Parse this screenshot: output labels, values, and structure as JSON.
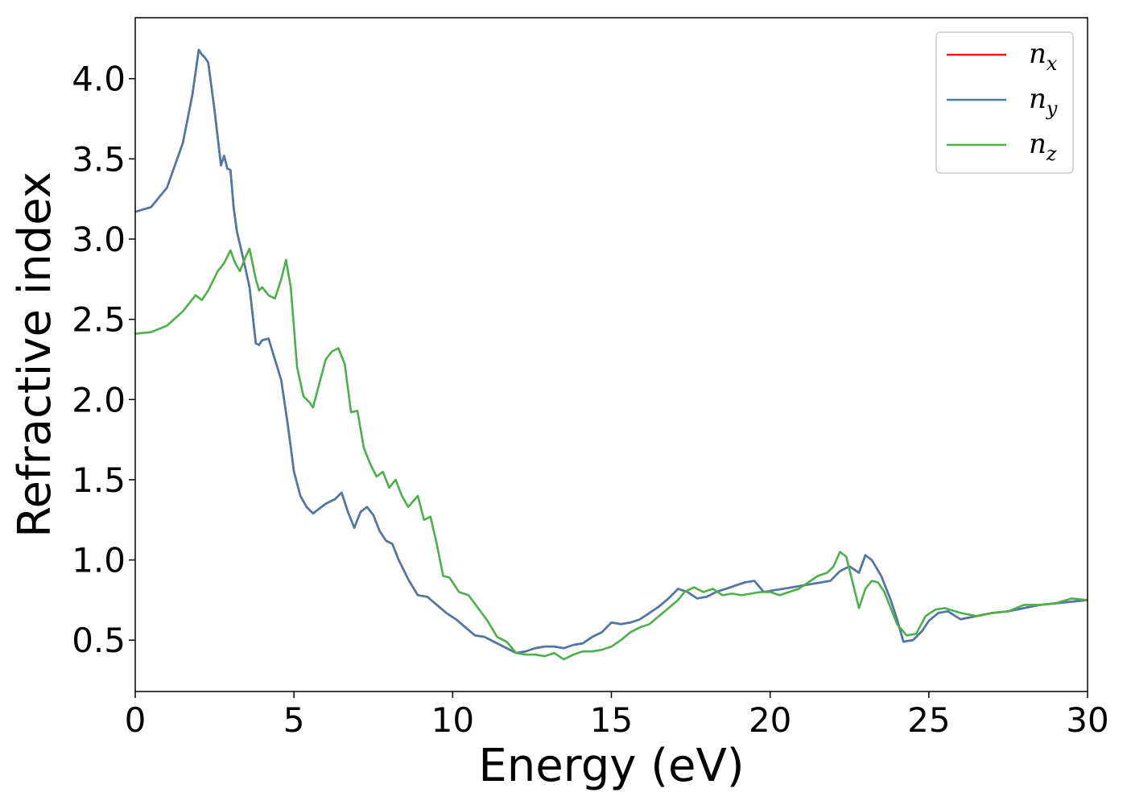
{
  "chart_data": {
    "type": "line",
    "xlabel": "Energy (eV)",
    "ylabel": "Refractive index",
    "xlim": [
      0,
      30
    ],
    "ylim": [
      0.18,
      4.38
    ],
    "xticks": [
      0,
      5,
      10,
      15,
      20,
      25,
      30
    ],
    "yticks": [
      0.5,
      1.0,
      1.5,
      2.0,
      2.5,
      3.0,
      3.5,
      4.0
    ],
    "xtick_labels": [
      "0",
      "5",
      "10",
      "15",
      "20",
      "25",
      "30"
    ],
    "ytick_labels": [
      "0.5",
      "1.0",
      "1.5",
      "2.0",
      "2.5",
      "3.0",
      "3.5",
      "4.0"
    ],
    "grid": false,
    "legend_position": "top-right",
    "series": [
      {
        "name": "n",
        "subscript": "x",
        "color": "#e41a1c",
        "x": [
          0,
          0.5,
          1.0,
          1.5,
          1.8,
          2.0,
          2.1,
          2.2,
          2.3,
          2.5,
          2.7,
          2.8,
          2.9,
          3.0,
          3.1,
          3.2,
          3.4,
          3.6,
          3.8,
          3.9,
          4.0,
          4.2,
          4.4,
          4.6,
          4.8,
          5.0,
          5.2,
          5.4,
          5.6,
          5.8,
          6.0,
          6.3,
          6.5,
          6.7,
          6.9,
          7.1,
          7.3,
          7.5,
          7.7,
          7.9,
          8.1,
          8.3,
          8.6,
          8.9,
          9.2,
          9.5,
          9.8,
          10.1,
          10.4,
          10.7,
          11.0,
          11.3,
          11.6,
          12.0,
          12.3,
          12.6,
          12.9,
          13.2,
          13.5,
          13.8,
          14.1,
          14.4,
          14.7,
          15.0,
          15.3,
          15.6,
          15.9,
          16.2,
          16.5,
          16.8,
          17.1,
          17.4,
          17.7,
          18.0,
          18.3,
          18.6,
          18.9,
          19.2,
          19.5,
          19.8,
          20.1,
          20.4,
          20.7,
          21.0,
          21.3,
          21.6,
          21.9,
          22.2,
          22.5,
          22.8,
          23.0,
          23.2,
          23.5,
          23.8,
          24.0,
          24.2,
          24.5,
          24.8,
          25.0,
          25.3,
          25.6,
          26.0,
          26.5,
          27.0,
          27.5,
          28.0,
          28.5,
          29.0,
          29.5,
          30.0
        ],
        "y": [
          3.17,
          3.2,
          3.32,
          3.6,
          3.9,
          4.18,
          4.15,
          4.13,
          4.1,
          3.8,
          3.46,
          3.52,
          3.44,
          3.43,
          3.2,
          3.05,
          2.88,
          2.7,
          2.35,
          2.34,
          2.37,
          2.38,
          2.25,
          2.12,
          1.85,
          1.55,
          1.4,
          1.33,
          1.29,
          1.32,
          1.35,
          1.38,
          1.42,
          1.3,
          1.2,
          1.3,
          1.33,
          1.28,
          1.18,
          1.12,
          1.1,
          1.0,
          0.88,
          0.78,
          0.77,
          0.72,
          0.67,
          0.63,
          0.58,
          0.53,
          0.52,
          0.49,
          0.46,
          0.42,
          0.43,
          0.45,
          0.46,
          0.46,
          0.45,
          0.47,
          0.48,
          0.52,
          0.55,
          0.61,
          0.6,
          0.61,
          0.63,
          0.67,
          0.71,
          0.76,
          0.82,
          0.8,
          0.76,
          0.77,
          0.8,
          0.82,
          0.84,
          0.86,
          0.87,
          0.8,
          0.81,
          0.82,
          0.83,
          0.84,
          0.85,
          0.86,
          0.87,
          0.93,
          0.96,
          0.92,
          1.03,
          1.0,
          0.9,
          0.75,
          0.63,
          0.49,
          0.5,
          0.56,
          0.62,
          0.67,
          0.68,
          0.63,
          0.65,
          0.67,
          0.68,
          0.7,
          0.72,
          0.73,
          0.74,
          0.75
        ]
      },
      {
        "name": "n",
        "subscript": "y",
        "color": "#4a7aa8",
        "x": [
          0,
          0.5,
          1.0,
          1.5,
          1.8,
          2.0,
          2.1,
          2.2,
          2.3,
          2.5,
          2.7,
          2.8,
          2.9,
          3.0,
          3.1,
          3.2,
          3.4,
          3.6,
          3.8,
          3.9,
          4.0,
          4.2,
          4.4,
          4.6,
          4.8,
          5.0,
          5.2,
          5.4,
          5.6,
          5.8,
          6.0,
          6.3,
          6.5,
          6.7,
          6.9,
          7.1,
          7.3,
          7.5,
          7.7,
          7.9,
          8.1,
          8.3,
          8.6,
          8.9,
          9.2,
          9.5,
          9.8,
          10.1,
          10.4,
          10.7,
          11.0,
          11.3,
          11.6,
          12.0,
          12.3,
          12.6,
          12.9,
          13.2,
          13.5,
          13.8,
          14.1,
          14.4,
          14.7,
          15.0,
          15.3,
          15.6,
          15.9,
          16.2,
          16.5,
          16.8,
          17.1,
          17.4,
          17.7,
          18.0,
          18.3,
          18.6,
          18.9,
          19.2,
          19.5,
          19.8,
          20.1,
          20.4,
          20.7,
          21.0,
          21.3,
          21.6,
          21.9,
          22.2,
          22.5,
          22.8,
          23.0,
          23.2,
          23.5,
          23.8,
          24.0,
          24.2,
          24.5,
          24.8,
          25.0,
          25.3,
          25.6,
          26.0,
          26.5,
          27.0,
          27.5,
          28.0,
          28.5,
          29.0,
          29.5,
          30.0
        ],
        "y": [
          3.17,
          3.2,
          3.32,
          3.6,
          3.9,
          4.18,
          4.15,
          4.13,
          4.1,
          3.8,
          3.46,
          3.52,
          3.44,
          3.43,
          3.2,
          3.05,
          2.88,
          2.7,
          2.35,
          2.34,
          2.37,
          2.38,
          2.25,
          2.12,
          1.85,
          1.55,
          1.4,
          1.33,
          1.29,
          1.32,
          1.35,
          1.38,
          1.42,
          1.3,
          1.2,
          1.3,
          1.33,
          1.28,
          1.18,
          1.12,
          1.1,
          1.0,
          0.88,
          0.78,
          0.77,
          0.72,
          0.67,
          0.63,
          0.58,
          0.53,
          0.52,
          0.49,
          0.46,
          0.42,
          0.43,
          0.45,
          0.46,
          0.46,
          0.45,
          0.47,
          0.48,
          0.52,
          0.55,
          0.61,
          0.6,
          0.61,
          0.63,
          0.67,
          0.71,
          0.76,
          0.82,
          0.8,
          0.76,
          0.77,
          0.8,
          0.82,
          0.84,
          0.86,
          0.87,
          0.8,
          0.81,
          0.82,
          0.83,
          0.84,
          0.85,
          0.86,
          0.87,
          0.93,
          0.96,
          0.92,
          1.03,
          1.0,
          0.9,
          0.75,
          0.63,
          0.49,
          0.5,
          0.56,
          0.62,
          0.67,
          0.68,
          0.63,
          0.65,
          0.67,
          0.68,
          0.7,
          0.72,
          0.73,
          0.74,
          0.75
        ]
      },
      {
        "name": "n",
        "subscript": "z",
        "color": "#4daf4a",
        "x": [
          0,
          0.5,
          1.0,
          1.5,
          1.9,
          2.1,
          2.3,
          2.6,
          2.8,
          3.0,
          3.15,
          3.3,
          3.5,
          3.6,
          3.8,
          3.9,
          4.0,
          4.2,
          4.4,
          4.6,
          4.75,
          4.9,
          5.1,
          5.3,
          5.5,
          5.6,
          5.8,
          6.0,
          6.2,
          6.4,
          6.6,
          6.8,
          7.0,
          7.2,
          7.4,
          7.6,
          7.8,
          8.0,
          8.2,
          8.4,
          8.6,
          8.9,
          9.1,
          9.3,
          9.5,
          9.7,
          9.9,
          10.2,
          10.5,
          10.8,
          11.1,
          11.4,
          11.7,
          12.0,
          12.3,
          12.6,
          12.9,
          13.2,
          13.5,
          13.8,
          14.1,
          14.4,
          14.7,
          15.0,
          15.3,
          15.6,
          15.9,
          16.2,
          16.5,
          16.8,
          17.1,
          17.3,
          17.6,
          17.9,
          18.2,
          18.5,
          18.8,
          19.1,
          19.4,
          19.7,
          20.0,
          20.3,
          20.6,
          20.9,
          21.2,
          21.5,
          21.8,
          22.0,
          22.2,
          22.4,
          22.6,
          22.8,
          23.0,
          23.2,
          23.4,
          23.6,
          23.8,
          24.0,
          24.3,
          24.6,
          24.9,
          25.2,
          25.5,
          26.0,
          26.5,
          27.0,
          27.5,
          28.0,
          28.5,
          29.0,
          29.5,
          30.0
        ],
        "y": [
          2.41,
          2.42,
          2.46,
          2.55,
          2.65,
          2.62,
          2.68,
          2.8,
          2.85,
          2.93,
          2.85,
          2.8,
          2.9,
          2.94,
          2.75,
          2.68,
          2.7,
          2.65,
          2.63,
          2.75,
          2.87,
          2.7,
          2.2,
          2.02,
          1.98,
          1.95,
          2.1,
          2.25,
          2.3,
          2.32,
          2.22,
          1.92,
          1.93,
          1.7,
          1.6,
          1.52,
          1.55,
          1.45,
          1.5,
          1.4,
          1.33,
          1.4,
          1.25,
          1.27,
          1.1,
          0.9,
          0.89,
          0.8,
          0.78,
          0.7,
          0.62,
          0.52,
          0.49,
          0.42,
          0.41,
          0.41,
          0.4,
          0.42,
          0.38,
          0.41,
          0.43,
          0.43,
          0.44,
          0.46,
          0.5,
          0.55,
          0.58,
          0.6,
          0.65,
          0.7,
          0.75,
          0.8,
          0.83,
          0.8,
          0.82,
          0.78,
          0.79,
          0.78,
          0.79,
          0.8,
          0.8,
          0.78,
          0.8,
          0.82,
          0.86,
          0.9,
          0.92,
          0.96,
          1.05,
          1.02,
          0.86,
          0.7,
          0.82,
          0.87,
          0.86,
          0.8,
          0.7,
          0.6,
          0.53,
          0.54,
          0.65,
          0.69,
          0.7,
          0.67,
          0.65,
          0.67,
          0.68,
          0.72,
          0.72,
          0.73,
          0.76,
          0.75
        ]
      }
    ]
  }
}
